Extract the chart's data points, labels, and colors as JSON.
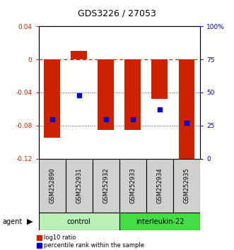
{
  "title": "GDS3226 / 27053",
  "samples": [
    "GSM252890",
    "GSM252931",
    "GSM252932",
    "GSM252933",
    "GSM252934",
    "GSM252935"
  ],
  "log10_ratio": [
    -0.095,
    0.01,
    -0.085,
    -0.085,
    -0.048,
    -0.12
  ],
  "percentile_rank": [
    30,
    48,
    30,
    30,
    37,
    27
  ],
  "groups": [
    {
      "label": "control",
      "indices": [
        0,
        1,
        2
      ],
      "color": "#b8f0b8"
    },
    {
      "label": "interleukin-22",
      "indices": [
        3,
        4,
        5
      ],
      "color": "#44dd44"
    }
  ],
  "ylim_left": [
    -0.12,
    0.04
  ],
  "ylim_right": [
    0,
    100
  ],
  "yticks_left": [
    0.04,
    0,
    -0.04,
    -0.08,
    -0.12
  ],
  "yticks_left_labels": [
    "0.04",
    "0",
    "-0.04",
    "-0.08",
    "-0.12"
  ],
  "yticks_right": [
    100,
    75,
    50,
    25,
    0
  ],
  "yticks_right_labels": [
    "100%",
    "75",
    "50",
    "25",
    "0"
  ],
  "bar_color": "#cc2200",
  "dot_color": "#0000cc",
  "bar_width": 0.6,
  "hline_zero_color": "#cc2200",
  "hline_dotted_color": "#555555",
  "left_label_color": "#cc2200",
  "right_label_color": "#0000cc",
  "legend_items": [
    "log10 ratio",
    "percentile rank within the sample"
  ],
  "agent_label": "agent",
  "sample_box_color": "#d0d0d0",
  "box_edge_color": "#000000"
}
